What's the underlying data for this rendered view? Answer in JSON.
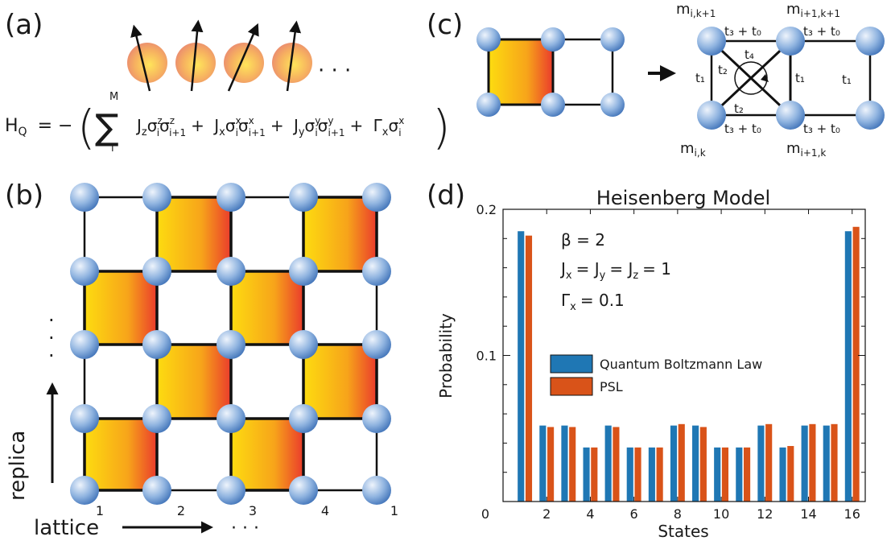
{
  "panels": {
    "a": {
      "label": "(a)",
      "ellipsis": "· · ·",
      "hamiltonian": {
        "lhs": "H",
        "lhs_sub": "Q",
        "eq": "= −",
        "sum_upper": "M",
        "sum_lower": "i",
        "terms": [
          {
            "coef": "J",
            "coef_sub": "z",
            "sigma1_sup": "z",
            "sigma1_sub": "i",
            "sigma2_sup": "z",
            "sigma2_sub": "i+1",
            "op": "+"
          },
          {
            "coef": "J",
            "coef_sub": "x",
            "sigma1_sup": "x",
            "sigma1_sub": "i",
            "sigma2_sup": "x",
            "sigma2_sub": "i+1",
            "op": "+"
          },
          {
            "coef": "J",
            "coef_sub": "y",
            "sigma1_sup": "y",
            "sigma1_sub": "i",
            "sigma2_sup": "y",
            "sigma2_sub": "i+1",
            "op": "+"
          }
        ],
        "field": {
          "coef": "Γ",
          "coef_sub": "x",
          "sigma_sup": "x",
          "sigma_sub": "i"
        }
      }
    },
    "b": {
      "label": "(b)",
      "vertical_dots": "·\n·\n·",
      "replica_label": "replica",
      "lattice_label": "lattice",
      "lattice_dots": "· · ·",
      "lattice_ticks": [
        "1",
        "2",
        "3",
        "4",
        "1"
      ]
    },
    "c": {
      "label": "(c)",
      "corner_labels": {
        "top_left": {
          "main": "m",
          "sub": "i,k+1"
        },
        "top_right": {
          "main": "m",
          "sub": "i+1,k+1"
        },
        "bottom_left": {
          "main": "m",
          "sub": "i,k"
        },
        "bottom_right": {
          "main": "m",
          "sub": "i+1,k"
        }
      },
      "couplings": {
        "t3t0": "t₃ + t₀",
        "t1": "t₁",
        "t2": "t₂",
        "t4": "t₄"
      }
    },
    "d": {
      "label": "(d)",
      "annotations": [
        "β = 2",
        "Jₓ = Jᵧ = J_z = 1",
        "Γₓ = 0.1"
      ],
      "annotation_parts": {
        "beta": "β = 2",
        "j": {
          "a": "J",
          "a_sub": "x",
          "b": "= J",
          "b_sub": "y",
          "c": "= J",
          "c_sub": "z",
          "d": "= 1"
        },
        "gamma": {
          "a": "Γ",
          "a_sub": "x",
          "b": "= 0.1"
        }
      }
    }
  },
  "colors": {
    "quantum": "#1f77b4",
    "psl": "#d95319",
    "sphere_light": "#dbe8f7",
    "sphere_dark": "#4c7fc2",
    "plaquette_left": "#fddc10",
    "plaquette_right": "#ea3b2c"
  },
  "chart_data": {
    "type": "bar",
    "title": "Heisenberg Model",
    "xlabel": "States",
    "ylabel": "Probability",
    "xlim": [
      0,
      16.6
    ],
    "ylim": [
      0,
      0.2
    ],
    "x_ticks": [
      0,
      2,
      4,
      6,
      8,
      10,
      12,
      14,
      16
    ],
    "x_tick_labels": [
      "0",
      "2",
      "4",
      "6",
      "8",
      "10",
      "12",
      "14",
      "16"
    ],
    "y_ticks": [
      0,
      0.1,
      0.2
    ],
    "y_tick_labels": [
      "",
      "0.1",
      "0.2"
    ],
    "legend_position": "center-right",
    "categories": [
      1,
      2,
      3,
      4,
      5,
      6,
      7,
      8,
      9,
      10,
      11,
      12,
      13,
      14,
      15,
      16
    ],
    "series": [
      {
        "name": "Quantum Boltzmann Law",
        "color": "#1f77b4",
        "values": [
          0.185,
          0.052,
          0.052,
          0.037,
          0.052,
          0.037,
          0.037,
          0.052,
          0.052,
          0.037,
          0.037,
          0.052,
          0.037,
          0.052,
          0.052,
          0.185
        ]
      },
      {
        "name": "PSL",
        "color": "#d95319",
        "values": [
          0.182,
          0.051,
          0.051,
          0.037,
          0.051,
          0.037,
          0.037,
          0.053,
          0.051,
          0.037,
          0.037,
          0.053,
          0.038,
          0.053,
          0.053,
          0.188
        ]
      }
    ]
  }
}
